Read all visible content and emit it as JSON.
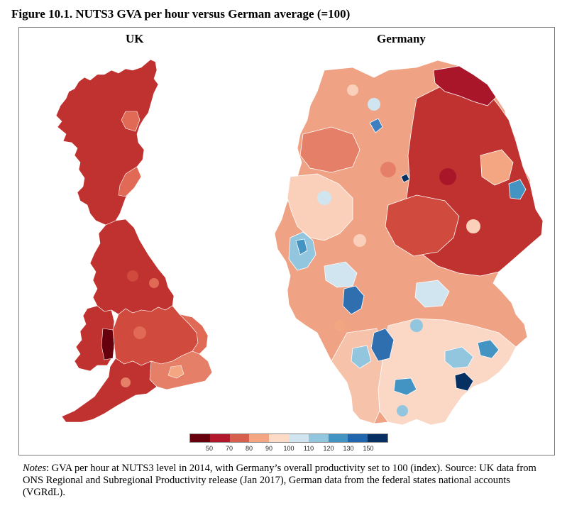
{
  "figure": {
    "title": "Figure 10.1. NUTS3 GVA per hour versus German average (=100)"
  },
  "panels": {
    "uk_label": "UK",
    "germany_label": "Germany"
  },
  "legend": {
    "tick_labels": [
      "50",
      "70",
      "80",
      "90",
      "100",
      "110",
      "120",
      "130",
      "150"
    ],
    "colors": [
      "#67000d",
      "#b2182b",
      "#d6604d",
      "#f4a582",
      "#fddbc7",
      "#d1e5f0",
      "#92c5de",
      "#4393c3",
      "#2166ac",
      "#053061"
    ]
  },
  "notes": {
    "label": "Notes",
    "text": ": GVA per hour at NUTS3 level in 2014, with Germany’s overall productivity set to 100 (index). Source: UK data from ONS Regional and Subregional Productivity release (Jan 2017), German data from the federal states national accounts (VGRdL)."
  }
}
